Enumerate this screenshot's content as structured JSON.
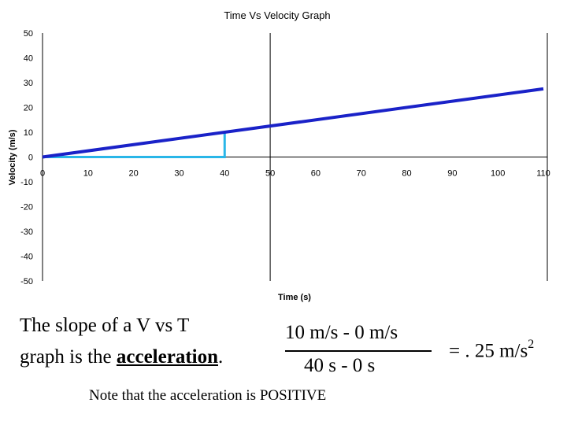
{
  "chart_data": {
    "type": "line",
    "title": "Time Vs Velocity Graph",
    "xlabel": "Time (s)",
    "ylabel": "Velocity (m/s)",
    "xlim": [
      0,
      110
    ],
    "ylim": [
      -50,
      50
    ],
    "x_ticks": [
      0,
      10,
      20,
      30,
      40,
      50,
      60,
      70,
      80,
      90,
      100,
      110
    ],
    "y_ticks": [
      50,
      40,
      30,
      20,
      10,
      0,
      -10,
      -20,
      -30,
      -40,
      -50
    ],
    "vertical_reference_x": 50,
    "series": [
      {
        "name": "velocity",
        "color": "#1a22c8",
        "x": [
          0,
          110
        ],
        "y": [
          0,
          27.5
        ]
      }
    ],
    "slope_triangle": {
      "color": "#29b6e8",
      "points": [
        [
          0,
          0
        ],
        [
          40,
          0
        ],
        [
          40,
          10
        ]
      ]
    }
  },
  "text": {
    "slope_line1": "The slope of a V vs T",
    "slope_line2_prefix": "graph is the ",
    "slope_line2_bold": "acceleration",
    "slope_line2_suffix": ".",
    "numerator": "10 m/s - 0 m/s",
    "denominator": "40 s - 0 s",
    "result_prefix": "= . 25 m/s",
    "result_exponent": "2",
    "note": "Note that the acceleration is POSITIVE"
  }
}
